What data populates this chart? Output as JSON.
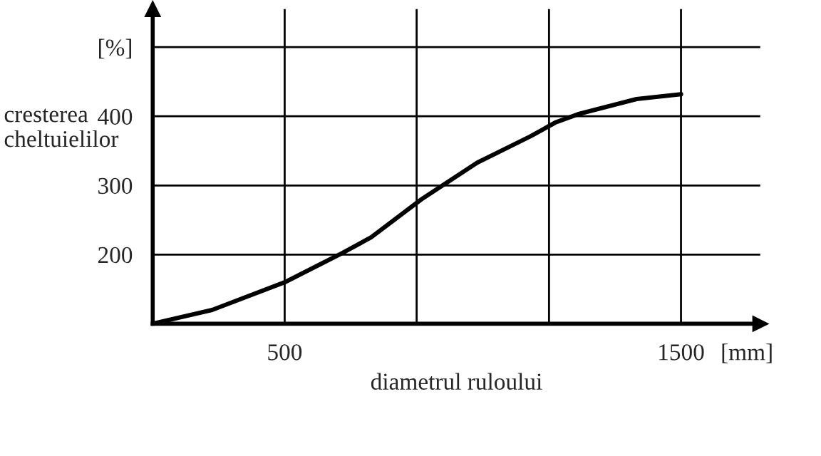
{
  "chart_data": {
    "type": "line",
    "xlabel": "diametrul ruloului",
    "ylabel": "cresterea\ncheltuielilor",
    "x": [
      167,
      317,
      500,
      638,
      718,
      845,
      986,
      1120,
      1183,
      1240,
      1388,
      1500
    ],
    "series": [
      {
        "color": "#000000",
        "values": [
          100,
          120,
          160,
          200,
          225,
          280,
          333,
          371,
          391,
          403,
          425,
          432
        ]
      }
    ],
    "xlim": [
      167,
      1700
    ],
    "xticks": [
      500,
      {
        "value": 833,
        "label": null
      },
      {
        "value": 1167,
        "label": null
      },
      1500
    ],
    "ylim": [
      100,
      555
    ],
    "yticks": [
      200,
      300,
      400,
      {
        "value": 500,
        "label": "[%]"
      }
    ],
    "annotations": [
      "[mm]"
    ],
    "grid": true,
    "marker": "none",
    "line_style": "solid"
  }
}
